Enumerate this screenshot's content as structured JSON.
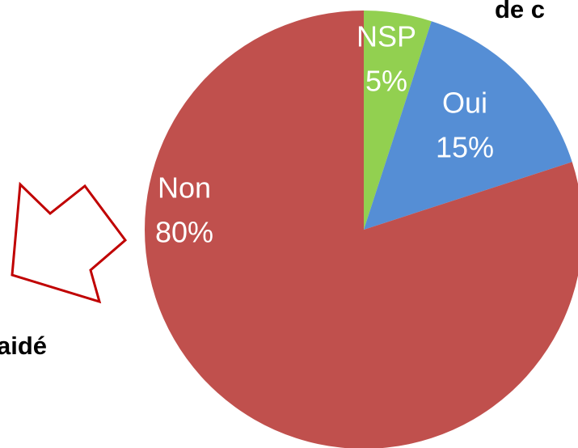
{
  "chart_data": {
    "type": "pie",
    "annotations": [
      "de c",
      "aidé"
    ],
    "categories": [
      "NSP",
      "Oui",
      "Non"
    ],
    "values": [
      5,
      15,
      80
    ],
    "value_labels": [
      "5%",
      "15%",
      "80%"
    ],
    "colors": [
      "#92d050",
      "#558ed5",
      "#c0504d"
    ]
  }
}
